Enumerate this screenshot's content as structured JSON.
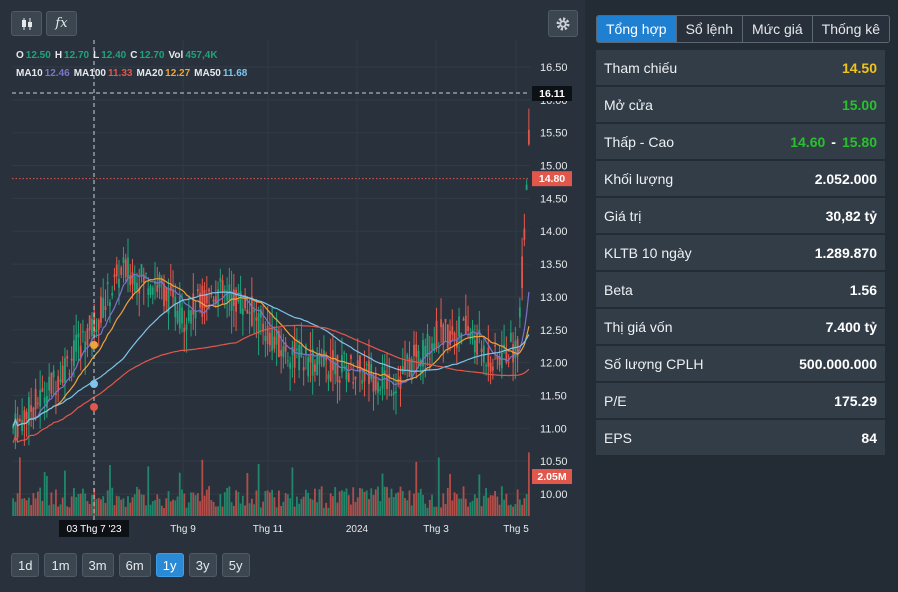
{
  "toolbar": {
    "candle_icon": "candlestick-icon",
    "fx_label": "fx",
    "settings_icon": "gear-icon"
  },
  "legend": {
    "ohlc": [
      {
        "key": "O",
        "value": "12.50"
      },
      {
        "key": "H",
        "value": "12.70"
      },
      {
        "key": "L",
        "value": "12.40"
      },
      {
        "key": "C",
        "value": "12.70"
      },
      {
        "key": "Vol",
        "value": "457,4K"
      }
    ],
    "ma": [
      {
        "key": "MA10",
        "value": "12.46",
        "color": "#7b74c9"
      },
      {
        "key": "MA100",
        "value": "11.33",
        "color": "#e2574c"
      },
      {
        "key": "MA20",
        "value": "12.27",
        "color": "#f0a33a"
      },
      {
        "key": "MA50",
        "value": "11.68",
        "color": "#7ec4ec"
      }
    ]
  },
  "chart_data": {
    "type": "candlestick",
    "y_ticks": [
      "16.50",
      "16.00",
      "15.50",
      "15.00",
      "14.50",
      "14.00",
      "13.50",
      "13.00",
      "12.50",
      "12.00",
      "11.50",
      "11.00",
      "10.50",
      "10.00"
    ],
    "x_ticks": [
      "Thg 9",
      "Thg 11",
      "2024",
      "Thg 3",
      "Thg 5"
    ],
    "crosshair_date": "03 Thg 7 '23",
    "crosshair_price": "16.11",
    "reference_price": "14.80",
    "volume_label": "2.05M",
    "ylim": [
      9.6,
      16.8
    ],
    "grid": true
  },
  "ranges": [
    {
      "label": "1d",
      "active": false
    },
    {
      "label": "1m",
      "active": false
    },
    {
      "label": "3m",
      "active": false
    },
    {
      "label": "6m",
      "active": false
    },
    {
      "label": "1y",
      "active": true
    },
    {
      "label": "3y",
      "active": false
    },
    {
      "label": "5y",
      "active": false
    }
  ],
  "tabs": [
    {
      "label": "Tổng hợp",
      "active": true
    },
    {
      "label": "Sổ lệnh",
      "active": false
    },
    {
      "label": "Mức giá",
      "active": false
    },
    {
      "label": "Thống kê",
      "active": false
    }
  ],
  "stats": [
    {
      "label": "Tham chiếu",
      "value": "14.50",
      "color": "#f0c419"
    },
    {
      "label": "Mở cửa",
      "value": "15.00",
      "color": "#27c22b"
    },
    {
      "label": "Thấp - Cao",
      "value_low": "14.60",
      "value_high": "15.80",
      "color": "#27c22b"
    },
    {
      "label": "Khối lượng",
      "value": "2.052.000"
    },
    {
      "label": "Giá trị",
      "value": "30,82 tỷ"
    },
    {
      "label": "KLTB 10 ngày",
      "value": "1.289.870"
    },
    {
      "label": "Beta",
      "value": "1.56"
    },
    {
      "label": "Thị giá vốn",
      "value": "7.400 tỷ"
    },
    {
      "label": "Số lượng CPLH",
      "value": "500.000.000"
    },
    {
      "label": "P/E",
      "value": "175.29"
    },
    {
      "label": "EPS",
      "value": "84"
    }
  ]
}
